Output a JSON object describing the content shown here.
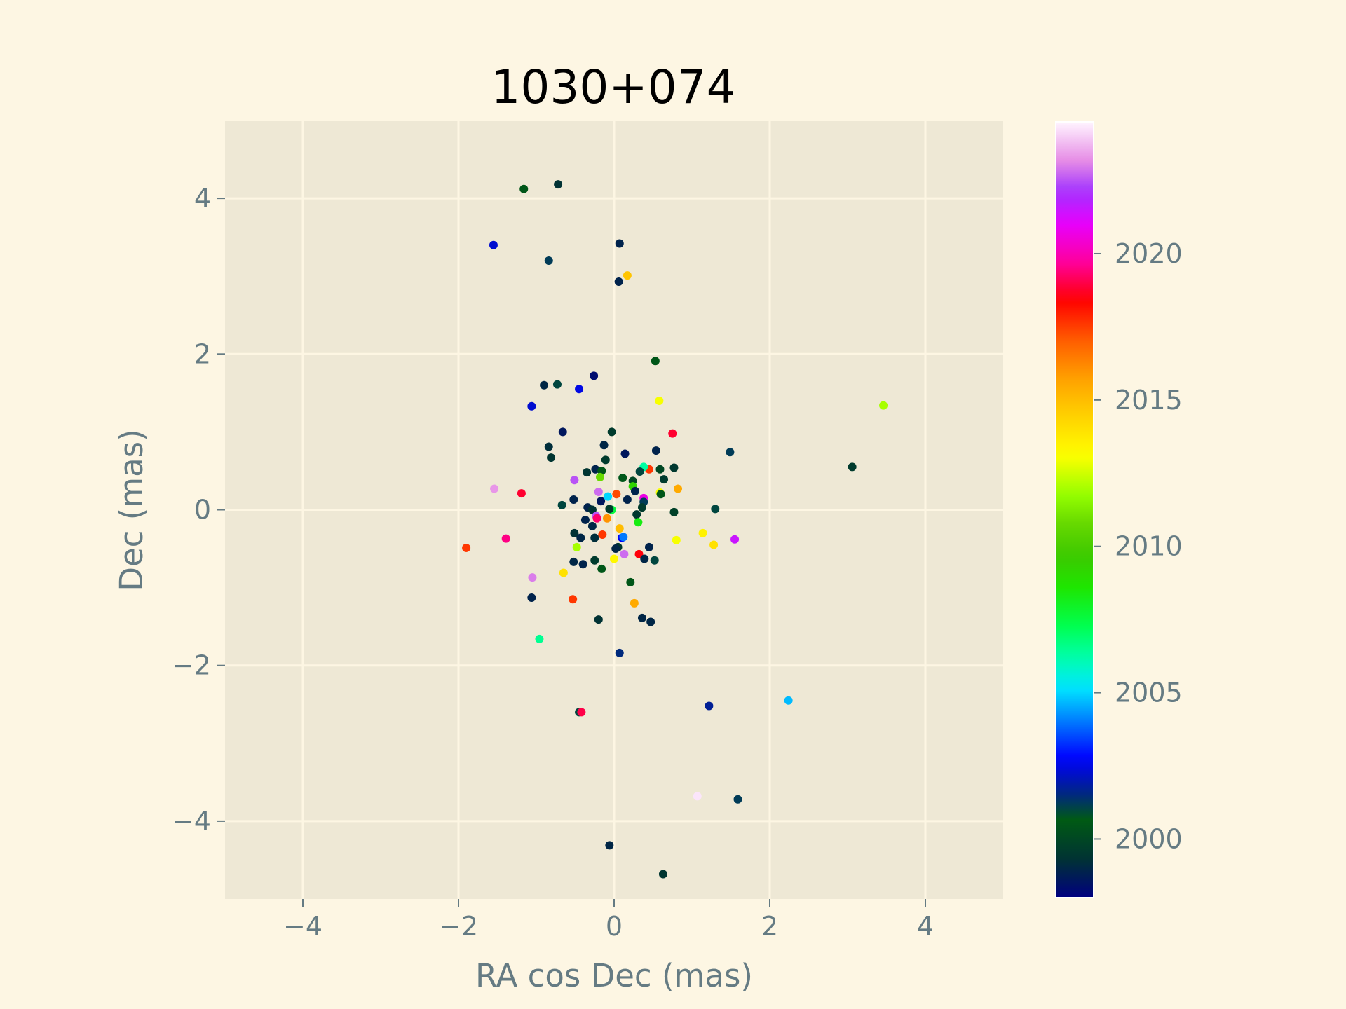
{
  "chart_data": {
    "type": "scatter",
    "title": "1030+074",
    "xlabel": "RA cos Dec (mas)",
    "ylabel": "Dec (mas)",
    "xlim": [
      -5,
      5
    ],
    "ylim": [
      -5,
      5
    ],
    "x_ticks": [
      -4,
      -2,
      0,
      2,
      4
    ],
    "y_ticks": [
      -4,
      -2,
      0,
      2,
      4
    ],
    "x_tick_labels": [
      "−4",
      "−2",
      "0",
      "2",
      "4"
    ],
    "y_tick_labels": [
      "−4",
      "−2",
      "0",
      "2",
      "4"
    ],
    "grid": true,
    "colorbar": {
      "label": "",
      "range": [
        1998,
        2024.5
      ],
      "ticks": [
        2000,
        2005,
        2010,
        2015,
        2020
      ],
      "tick_labels": [
        "2000",
        "2005",
        "2010",
        "2015",
        "2020"
      ],
      "colormap": "gist_ncar"
    },
    "points": [
      {
        "x": -1.16,
        "y": 4.12,
        "c": 2000.5
      },
      {
        "x": -0.72,
        "y": 4.18,
        "c": 1999.3
      },
      {
        "x": -1.55,
        "y": 3.4,
        "c": 2002.3
      },
      {
        "x": -0.84,
        "y": 3.2,
        "c": 2001.2
      },
      {
        "x": 0.07,
        "y": 3.42,
        "c": 1998.9
      },
      {
        "x": 0.17,
        "y": 3.01,
        "c": 2014.8
      },
      {
        "x": 0.06,
        "y": 2.93,
        "c": 1998.9
      },
      {
        "x": 0.53,
        "y": 1.91,
        "c": 2000.5
      },
      {
        "x": -0.26,
        "y": 1.72,
        "c": 1998.3
      },
      {
        "x": -0.9,
        "y": 1.6,
        "c": 1999.0
      },
      {
        "x": -0.73,
        "y": 1.61,
        "c": 2001.0
      },
      {
        "x": -0.45,
        "y": 1.55,
        "c": 2002.5
      },
      {
        "x": -1.06,
        "y": 1.33,
        "c": 2002.3
      },
      {
        "x": 0.58,
        "y": 1.4,
        "c": 2013.0
      },
      {
        "x": 3.46,
        "y": 1.34,
        "c": 2012.0
      },
      {
        "x": -0.66,
        "y": 1.0,
        "c": 1998.6
      },
      {
        "x": -0.03,
        "y": 1.0,
        "c": 1999.6
      },
      {
        "x": 0.75,
        "y": 0.98,
        "c": 2018.8
      },
      {
        "x": -0.13,
        "y": 0.83,
        "c": 1999.0
      },
      {
        "x": -0.84,
        "y": 0.81,
        "c": 1999.2
      },
      {
        "x": 0.14,
        "y": 0.72,
        "c": 1998.6
      },
      {
        "x": 0.54,
        "y": 0.76,
        "c": 1998.9
      },
      {
        "x": 1.49,
        "y": 0.74,
        "c": 2001.2
      },
      {
        "x": -0.81,
        "y": 0.67,
        "c": 1999.4
      },
      {
        "x": -0.11,
        "y": 0.64,
        "c": 1999.6
      },
      {
        "x": 3.06,
        "y": 0.55,
        "c": 1999.6
      },
      {
        "x": -0.24,
        "y": 0.52,
        "c": 1998.9
      },
      {
        "x": 0.45,
        "y": 0.52,
        "c": 2017.6
      },
      {
        "x": 0.59,
        "y": 0.52,
        "c": 2000.0
      },
      {
        "x": 0.77,
        "y": 0.54,
        "c": 1999.5
      },
      {
        "x": 0.38,
        "y": 0.55,
        "c": 2006.3
      },
      {
        "x": 0.33,
        "y": 0.49,
        "c": 2001.0
      },
      {
        "x": -0.16,
        "y": 0.5,
        "c": 2000.5
      },
      {
        "x": -0.35,
        "y": 0.48,
        "c": 1999.4
      },
      {
        "x": -0.18,
        "y": 0.42,
        "c": 2010.8
      },
      {
        "x": 0.11,
        "y": 0.41,
        "c": 2000.7
      },
      {
        "x": -0.51,
        "y": 0.38,
        "c": 2022.5
      },
      {
        "x": 0.24,
        "y": 0.37,
        "c": 2000.0
      },
      {
        "x": 0.64,
        "y": 0.39,
        "c": 1999.6
      },
      {
        "x": 0.24,
        "y": 0.3,
        "c": 2009.2
      },
      {
        "x": 0.82,
        "y": 0.27,
        "c": 2015.5
      },
      {
        "x": 0.27,
        "y": 0.24,
        "c": 1998.9
      },
      {
        "x": -1.54,
        "y": 0.27,
        "c": 2023.3
      },
      {
        "x": -1.19,
        "y": 0.21,
        "c": 2018.8
      },
      {
        "x": -0.2,
        "y": 0.23,
        "c": 2022.8
      },
      {
        "x": 0.03,
        "y": 0.2,
        "c": 2017.3
      },
      {
        "x": 0.59,
        "y": 0.22,
        "c": 2013.0
      },
      {
        "x": 0.6,
        "y": 0.2,
        "c": 2000.5
      },
      {
        "x": -0.08,
        "y": 0.17,
        "c": 2005.0
      },
      {
        "x": 0.38,
        "y": 0.15,
        "c": 2020.7
      },
      {
        "x": 0.38,
        "y": 0.1,
        "c": 2001.2
      },
      {
        "x": 0.17,
        "y": 0.13,
        "c": 1998.9
      },
      {
        "x": -0.52,
        "y": 0.13,
        "c": 1998.9
      },
      {
        "x": -0.17,
        "y": 0.11,
        "c": 1998.6
      },
      {
        "x": 0.36,
        "y": 0.03,
        "c": 1999.6
      },
      {
        "x": -0.34,
        "y": 0.03,
        "c": 1998.9
      },
      {
        "x": -0.03,
        "y": 0.0,
        "c": 2007.5
      },
      {
        "x": 1.3,
        "y": 0.01,
        "c": 2001.0
      },
      {
        "x": -0.67,
        "y": 0.06,
        "c": 2001.0
      },
      {
        "x": -0.06,
        "y": 0.01,
        "c": 1999.6
      },
      {
        "x": 0.77,
        "y": -0.03,
        "c": 1999.8
      },
      {
        "x": -0.28,
        "y": 0.0,
        "c": 1999.3
      },
      {
        "x": 0.29,
        "y": -0.06,
        "c": 1999.5
      },
      {
        "x": -0.23,
        "y": -0.08,
        "c": 2022.5
      },
      {
        "x": -0.22,
        "y": -0.11,
        "c": 2019.3
      },
      {
        "x": -0.09,
        "y": -0.11,
        "c": 2016.0
      },
      {
        "x": -0.37,
        "y": -0.13,
        "c": 1998.9
      },
      {
        "x": 0.31,
        "y": -0.16,
        "c": 2008.3
      },
      {
        "x": -0.28,
        "y": -0.21,
        "c": 1999.0
      },
      {
        "x": 0.07,
        "y": -0.24,
        "c": 2015.0
      },
      {
        "x": 1.14,
        "y": -0.3,
        "c": 2013.5
      },
      {
        "x": -0.51,
        "y": -0.3,
        "c": 1999.3
      },
      {
        "x": -0.15,
        "y": -0.32,
        "c": 2017.6
      },
      {
        "x": -0.43,
        "y": -0.36,
        "c": 1999.0
      },
      {
        "x": -0.25,
        "y": -0.36,
        "c": 1999.2
      },
      {
        "x": 0.1,
        "y": -0.36,
        "c": 2002.7
      },
      {
        "x": 0.12,
        "y": -0.35,
        "c": 2004.0
      },
      {
        "x": -1.39,
        "y": -0.37,
        "c": 2019.5
      },
      {
        "x": 1.55,
        "y": -0.38,
        "c": 2021.5
      },
      {
        "x": 0.8,
        "y": -0.39,
        "c": 2013.0
      },
      {
        "x": 1.28,
        "y": -0.45,
        "c": 2014.0
      },
      {
        "x": 0.45,
        "y": -0.48,
        "c": 1998.9
      },
      {
        "x": -0.48,
        "y": -0.48,
        "c": 2012.0
      },
      {
        "x": 0.05,
        "y": -0.48,
        "c": 1999.5
      },
      {
        "x": 0.02,
        "y": -0.5,
        "c": 1999.0
      },
      {
        "x": -1.9,
        "y": -0.49,
        "c": 2017.6
      },
      {
        "x": 0.13,
        "y": -0.57,
        "c": 2022.8
      },
      {
        "x": 0.32,
        "y": -0.57,
        "c": 2018.5
      },
      {
        "x": 0.0,
        "y": -0.63,
        "c": 2013.3
      },
      {
        "x": 0.39,
        "y": -0.63,
        "c": 1999.0
      },
      {
        "x": 0.52,
        "y": -0.65,
        "c": 2001.0
      },
      {
        "x": -0.52,
        "y": -0.67,
        "c": 1999.0
      },
      {
        "x": -0.25,
        "y": -0.65,
        "c": 1999.6
      },
      {
        "x": -0.4,
        "y": -0.7,
        "c": 1998.9
      },
      {
        "x": -0.16,
        "y": -0.76,
        "c": 2000.5
      },
      {
        "x": -0.65,
        "y": -0.81,
        "c": 2014.0
      },
      {
        "x": -1.05,
        "y": -0.87,
        "c": 2023.0
      },
      {
        "x": 0.21,
        "y": -0.93,
        "c": 2000.5
      },
      {
        "x": -1.06,
        "y": -1.13,
        "c": 1998.9
      },
      {
        "x": -0.53,
        "y": -1.15,
        "c": 2017.6
      },
      {
        "x": 0.26,
        "y": -1.2,
        "c": 2015.5
      },
      {
        "x": 0.36,
        "y": -1.39,
        "c": 1999.0
      },
      {
        "x": -0.2,
        "y": -1.41,
        "c": 1999.3
      },
      {
        "x": 0.47,
        "y": -1.44,
        "c": 1999.0
      },
      {
        "x": -0.96,
        "y": -1.66,
        "c": 2006.5
      },
      {
        "x": 0.07,
        "y": -1.84,
        "c": 2001.5
      },
      {
        "x": 2.24,
        "y": -2.45,
        "c": 2004.7
      },
      {
        "x": 1.22,
        "y": -2.52,
        "c": 2001.7
      },
      {
        "x": -0.45,
        "y": -2.6,
        "c": 2001.0
      },
      {
        "x": -0.42,
        "y": -2.6,
        "c": 2019.0
      },
      {
        "x": 1.07,
        "y": -3.68,
        "c": 2024.3
      },
      {
        "x": 1.59,
        "y": -3.72,
        "c": 2001.2
      },
      {
        "x": -0.06,
        "y": -4.31,
        "c": 1999.0
      },
      {
        "x": 0.63,
        "y": -4.68,
        "c": 1999.4
      }
    ]
  }
}
